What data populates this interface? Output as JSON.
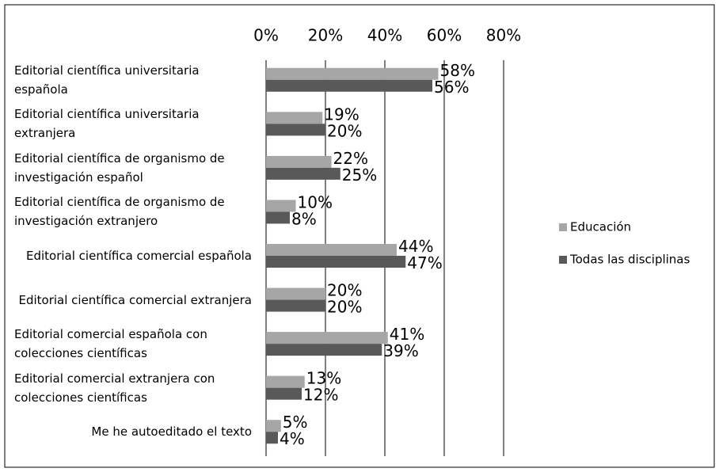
{
  "chart_data": {
    "type": "barh",
    "categories": [
      "Editorial científica universitaria española",
      "Editorial científica universitaria extranjera",
      "Editorial científica de organismo de investigación español",
      "Editorial científica de organismo de investigación extranjero",
      "Editorial científica comercial española",
      "Editorial científica comercial extranjera",
      "Editorial comercial española con colecciones científicas",
      "Editorial comercial extranjera con colecciones científicas",
      "Me he autoeditado el texto"
    ],
    "series": [
      {
        "name": "Educación",
        "color": "#a6a6a6",
        "values": [
          58,
          19,
          22,
          10,
          44,
          20,
          41,
          13,
          5
        ],
        "value_labels": [
          "58%",
          "19%",
          "22%",
          "10%",
          "44%",
          "20%",
          "41%",
          "13%",
          "5%"
        ]
      },
      {
        "name": "Todas las disciplinas",
        "color": "#595959",
        "values": [
          56,
          20,
          25,
          8,
          47,
          20,
          39,
          12,
          4
        ],
        "value_labels": [
          "56%",
          "20%",
          "25%",
          "8%",
          "47%",
          "20%",
          "39%",
          "12%",
          "4%"
        ]
      }
    ],
    "xlim": [
      0,
      80
    ],
    "xticks": [
      {
        "value": 0,
        "label": "0%"
      },
      {
        "value": 20,
        "label": "20%"
      },
      {
        "value": 40,
        "label": "40%"
      },
      {
        "value": 60,
        "label": "60%"
      },
      {
        "value": 80,
        "label": "80%"
      }
    ],
    "grid": true,
    "legend": "right"
  }
}
